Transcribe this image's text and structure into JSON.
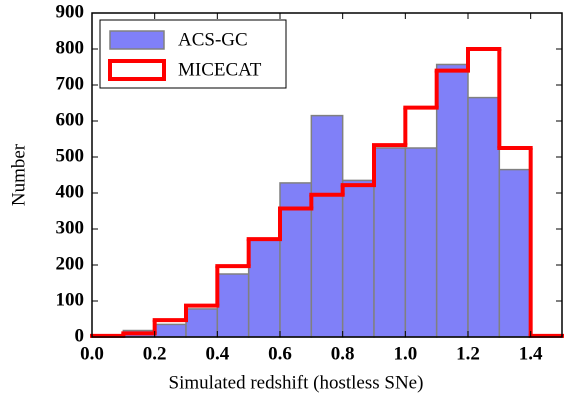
{
  "chart_data": {
    "type": "histogram",
    "xlabel": "Simulated redshift (hostless SNe)",
    "ylabel": "Number",
    "bins": [
      0,
      0.1,
      0.2,
      0.3,
      0.4,
      0.5,
      0.6,
      0.7,
      0.8,
      0.9,
      1.0,
      1.1,
      1.2,
      1.3,
      1.4,
      1.5
    ],
    "series": [
      {
        "name": "ACS-GC",
        "color": "#8080f8",
        "edgecolor": "#808080",
        "style": "filled",
        "values": [
          3,
          18,
          35,
          78,
          175,
          270,
          428,
          615,
          435,
          525,
          525,
          757,
          665,
          465,
          0
        ]
      },
      {
        "name": "MICECAT",
        "color": "#ff0000",
        "style": "step",
        "values": [
          3,
          10,
          47,
          87,
          197,
          272,
          357,
          395,
          422,
          533,
          637,
          740,
          800,
          525,
          3
        ]
      }
    ],
    "xlim": [
      0,
      1.5
    ],
    "ylim": [
      0,
      900
    ],
    "xticks": [
      {
        "value": 0,
        "label": "0.0"
      },
      0.2,
      0.4,
      0.6,
      0.8,
      {
        "value": 1,
        "label": "1.0"
      },
      1.2,
      1.4
    ],
    "yticks": [
      0,
      100,
      200,
      300,
      400,
      500,
      600,
      700,
      800,
      900
    ],
    "legend": "upper left"
  }
}
